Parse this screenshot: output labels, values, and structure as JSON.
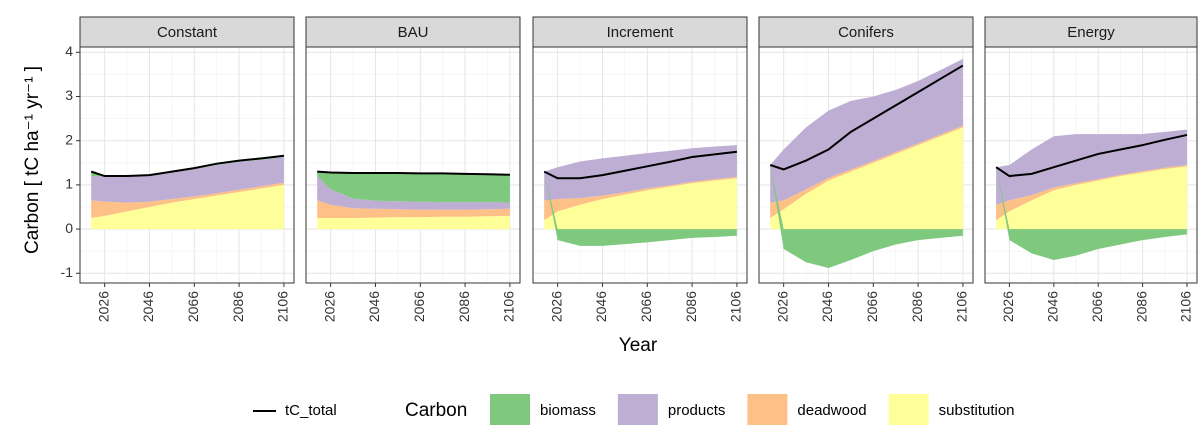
{
  "chart_data": [
    {
      "type": "area",
      "stacked": true,
      "title": "Constant",
      "x": [
        2020,
        2026,
        2036,
        2046,
        2056,
        2066,
        2076,
        2086,
        2096,
        2106
      ],
      "xlim": [
        2015,
        2110.5
      ],
      "xticks": [
        2026,
        2046,
        2066,
        2086,
        2106
      ],
      "ylim": [
        -1.22,
        4.12
      ],
      "yticks": [
        -1,
        0,
        1,
        2,
        3,
        4
      ],
      "grid": true,
      "ylabel": "Carbon [ tC ha⁻¹ yr⁻¹ ]",
      "xlabel": "Year",
      "legend_title": "Carbon",
      "legend": "bottom",
      "series": [
        {
          "name": "biomass",
          "type": "area",
          "color": "#7fc97f",
          "values": [
            0.1,
            0,
            0.02,
            0.02,
            0.02,
            0.02,
            0.03,
            0.03,
            0.03,
            0.03
          ]
        },
        {
          "name": "products",
          "type": "area",
          "color": "#beaed4",
          "values": [
            0.55,
            0.58,
            0.58,
            0.58,
            0.6,
            0.62,
            0.64,
            0.63,
            0.6,
            0.58
          ]
        },
        {
          "name": "deadwood",
          "type": "area",
          "color": "#fdc086",
          "values": [
            0.4,
            0.32,
            0.2,
            0.12,
            0.08,
            0.06,
            0.05,
            0.05,
            0.05,
            0.05
          ]
        },
        {
          "name": "substitution",
          "type": "area",
          "color": "#ffff99",
          "values": [
            0.25,
            0.3,
            0.4,
            0.5,
            0.6,
            0.68,
            0.76,
            0.84,
            0.92,
            1.0
          ]
        },
        {
          "name": "tC_total",
          "type": "line",
          "color": "#000000",
          "values": [
            1.3,
            1.2,
            1.2,
            1.22,
            1.3,
            1.38,
            1.48,
            1.55,
            1.6,
            1.66
          ]
        }
      ]
    },
    {
      "type": "area",
      "stacked": true,
      "title": "BAU",
      "x": [
        2020,
        2026,
        2036,
        2046,
        2056,
        2066,
        2076,
        2086,
        2096,
        2106
      ],
      "xlim": [
        2015,
        2110.5
      ],
      "xticks": [
        2026,
        2046,
        2066,
        2086,
        2106
      ],
      "ylim": [
        -1.22,
        4.12
      ],
      "yticks": [
        -1,
        0,
        1,
        2,
        3,
        4
      ],
      "grid": true,
      "series": [
        {
          "name": "biomass",
          "type": "area",
          "color": "#7fc97f",
          "values": [
            0.1,
            0.38,
            0.58,
            0.63,
            0.64,
            0.64,
            0.65,
            0.64,
            0.63,
            0.63
          ]
        },
        {
          "name": "products",
          "type": "area",
          "color": "#beaed4",
          "values": [
            0.55,
            0.35,
            0.22,
            0.18,
            0.18,
            0.18,
            0.17,
            0.17,
            0.16,
            0.14
          ]
        },
        {
          "name": "deadwood",
          "type": "area",
          "color": "#fdc086",
          "values": [
            0.4,
            0.3,
            0.22,
            0.2,
            0.18,
            0.17,
            0.16,
            0.16,
            0.16,
            0.16
          ]
        },
        {
          "name": "substitution",
          "type": "area",
          "color": "#ffff99",
          "values": [
            0.25,
            0.25,
            0.25,
            0.26,
            0.27,
            0.27,
            0.28,
            0.28,
            0.29,
            0.3
          ]
        },
        {
          "name": "tC_total",
          "type": "line",
          "color": "#000000",
          "values": [
            1.3,
            1.28,
            1.27,
            1.27,
            1.27,
            1.26,
            1.26,
            1.25,
            1.24,
            1.23
          ]
        }
      ]
    },
    {
      "type": "area",
      "stacked": true,
      "title": "Increment",
      "x": [
        2020,
        2026,
        2036,
        2046,
        2056,
        2066,
        2076,
        2086,
        2096,
        2106
      ],
      "xlim": [
        2015,
        2110.5
      ],
      "xticks": [
        2026,
        2046,
        2066,
        2086,
        2106
      ],
      "ylim": [
        -1.22,
        4.12
      ],
      "yticks": [
        -1,
        0,
        1,
        2,
        3,
        4
      ],
      "grid": true,
      "series": [
        {
          "name": "biomass",
          "type": "area",
          "color": "#7fc97f",
          "values": [
            0,
            -0.25,
            -0.38,
            -0.38,
            -0.34,
            -0.3,
            -0.25,
            -0.2,
            -0.18,
            -0.15
          ]
        },
        {
          "name": "products",
          "type": "area",
          "color": "#beaed4",
          "values": [
            0.65,
            0.72,
            0.83,
            0.84,
            0.83,
            0.8,
            0.78,
            0.76,
            0.74,
            0.72
          ]
        },
        {
          "name": "deadwood",
          "type": "area",
          "color": "#fdc086",
          "values": [
            0.45,
            0.28,
            0.15,
            0.08,
            0.05,
            0.04,
            0.03,
            0.03,
            0.03,
            0.03
          ]
        },
        {
          "name": "substitution",
          "type": "area",
          "color": "#ffff99",
          "values": [
            0.2,
            0.4,
            0.55,
            0.68,
            0.78,
            0.88,
            0.96,
            1.04,
            1.1,
            1.15
          ]
        },
        {
          "name": "tC_total",
          "type": "line",
          "color": "#000000",
          "values": [
            1.3,
            1.15,
            1.15,
            1.22,
            1.32,
            1.42,
            1.52,
            1.63,
            1.69,
            1.75
          ]
        }
      ]
    },
    {
      "type": "area",
      "stacked": true,
      "title": "Conifers",
      "x": [
        2020,
        2026,
        2036,
        2046,
        2056,
        2066,
        2076,
        2086,
        2096,
        2106
      ],
      "xlim": [
        2015,
        2110.5
      ],
      "xticks": [
        2026,
        2046,
        2066,
        2086,
        2106
      ],
      "ylim": [
        -1.22,
        4.12
      ],
      "yticks": [
        -1,
        0,
        1,
        2,
        3,
        4
      ],
      "grid": true,
      "series": [
        {
          "name": "biomass",
          "type": "area",
          "color": "#7fc97f",
          "values": [
            0,
            -0.45,
            -0.75,
            -0.88,
            -0.7,
            -0.5,
            -0.35,
            -0.25,
            -0.2,
            -0.15
          ]
        },
        {
          "name": "products",
          "type": "area",
          "color": "#beaed4",
          "values": [
            0.85,
            1.15,
            1.4,
            1.52,
            1.55,
            1.46,
            1.41,
            1.41,
            1.46,
            1.51
          ]
        },
        {
          "name": "deadwood",
          "type": "area",
          "color": "#fdc086",
          "values": [
            0.35,
            0.2,
            0.1,
            0.06,
            0.05,
            0.04,
            0.04,
            0.04,
            0.04,
            0.04
          ]
        },
        {
          "name": "substitution",
          "type": "area",
          "color": "#ffff99",
          "values": [
            0.25,
            0.45,
            0.8,
            1.1,
            1.3,
            1.5,
            1.7,
            1.9,
            2.1,
            2.3
          ]
        },
        {
          "name": "tC_total",
          "type": "line",
          "color": "#000000",
          "values": [
            1.45,
            1.35,
            1.55,
            1.8,
            2.2,
            2.5,
            2.8,
            3.1,
            3.4,
            3.7
          ]
        }
      ]
    },
    {
      "type": "area",
      "stacked": true,
      "title": "Energy",
      "x": [
        2020,
        2026,
        2036,
        2046,
        2056,
        2066,
        2076,
        2086,
        2096,
        2106
      ],
      "xlim": [
        2015,
        2110.5
      ],
      "xticks": [
        2026,
        2046,
        2066,
        2086,
        2106
      ],
      "ylim": [
        -1.22,
        4.12
      ],
      "yticks": [
        -1,
        0,
        1,
        2,
        3,
        4
      ],
      "grid": true,
      "series": [
        {
          "name": "biomass",
          "type": "area",
          "color": "#7fc97f",
          "values": [
            0,
            -0.25,
            -0.55,
            -0.7,
            -0.6,
            -0.45,
            -0.35,
            -0.25,
            -0.18,
            -0.12
          ]
        },
        {
          "name": "products",
          "type": "area",
          "color": "#beaed4",
          "values": [
            0.85,
            0.8,
            1.03,
            1.16,
            1.11,
            1.02,
            0.92,
            0.84,
            0.81,
            0.8
          ]
        },
        {
          "name": "deadwood",
          "type": "area",
          "color": "#fdc086",
          "values": [
            0.35,
            0.25,
            0.12,
            0.06,
            0.04,
            0.03,
            0.03,
            0.03,
            0.03,
            0.03
          ]
        },
        {
          "name": "substitution",
          "type": "area",
          "color": "#ffff99",
          "values": [
            0.2,
            0.4,
            0.65,
            0.88,
            1.0,
            1.1,
            1.2,
            1.28,
            1.36,
            1.42
          ]
        },
        {
          "name": "tC_total",
          "type": "line",
          "color": "#000000",
          "values": [
            1.4,
            1.2,
            1.25,
            1.4,
            1.55,
            1.7,
            1.8,
            1.9,
            2.02,
            2.13
          ]
        }
      ]
    }
  ]
}
